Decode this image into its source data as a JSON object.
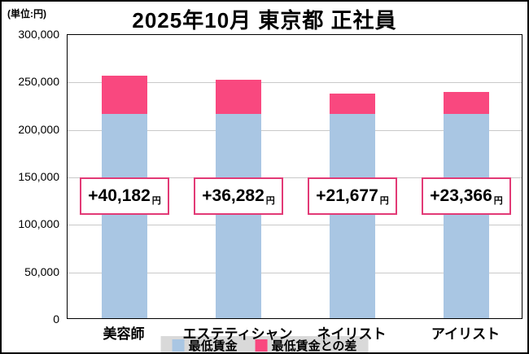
{
  "meta": {
    "unit_label": "(単位:円)",
    "title": "2025年10月 東京都 正社員"
  },
  "chart_data": {
    "type": "bar",
    "stacked": true,
    "title": "2025年10月 東京都 正社員",
    "unit": "円",
    "categories": [
      "美容師",
      "エステティシャン",
      "ネイリスト",
      "アイリスト"
    ],
    "series": [
      {
        "name": "最低賃金",
        "color": "#a9c6e3",
        "values": [
          215000,
          215000,
          215000,
          215000
        ]
      },
      {
        "name": "最低賃金との差",
        "color": "#f9487f",
        "values": [
          40182,
          36282,
          21677,
          23366
        ]
      }
    ],
    "bar_labels": [
      "+40,182",
      "+36,282",
      "+21,677",
      "+23,366"
    ],
    "bar_label_unit": "円",
    "totals": [
      255182,
      251282,
      236677,
      238366
    ],
    "ylim": [
      0,
      300000
    ],
    "ytick_interval": 50000,
    "ytick_labels": [
      "300,000",
      "250,000",
      "200,000",
      "150,000",
      "100,000",
      "50,000",
      "0"
    ],
    "grid": true,
    "legend_position": "bottom",
    "legend": [
      {
        "label": "最低賃金",
        "color": "#a9c6e3"
      },
      {
        "label": "最低賃金との差",
        "color": "#f9487f"
      }
    ]
  }
}
